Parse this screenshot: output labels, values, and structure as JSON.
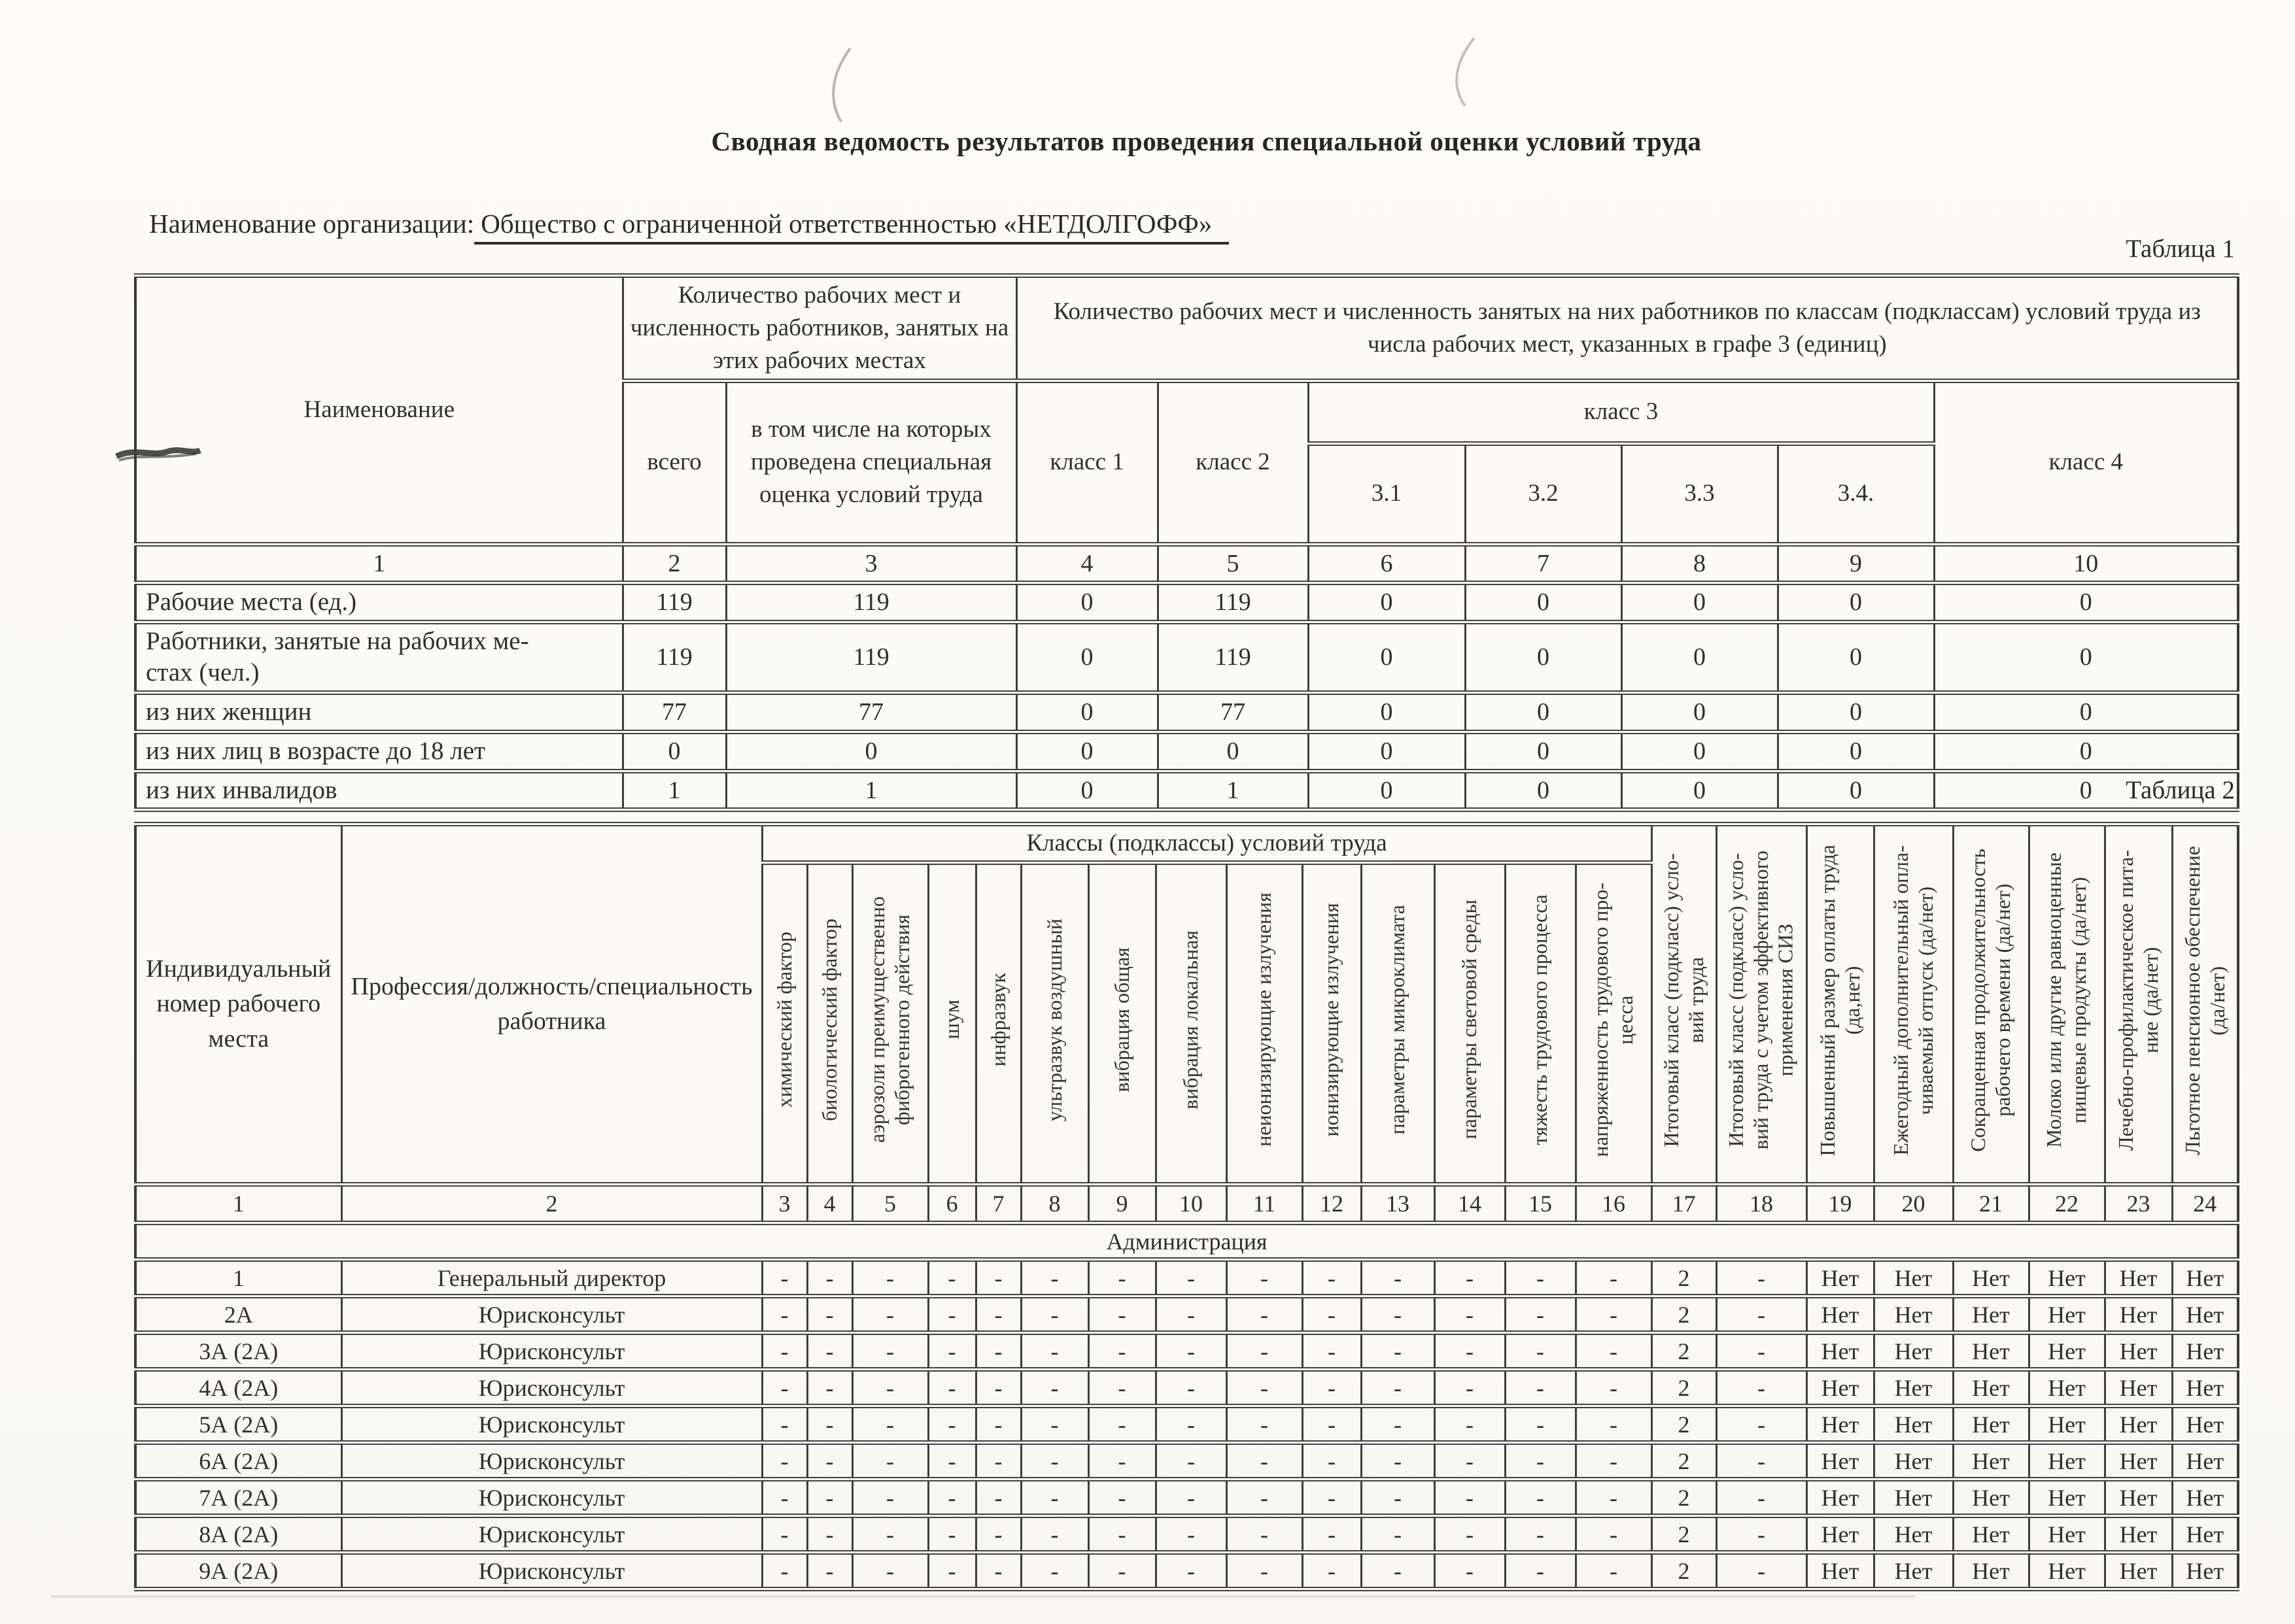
{
  "page": {
    "title": "Сводная ведомость результатов проведения специальной оценки условий труда",
    "org_label": "Наименование организации:",
    "org_value": "Общество с ограниченной ответственностью «НЕТДОЛГОФФ»"
  },
  "table1": {
    "caption": "Таблица 1",
    "header": {
      "name": "Наименование",
      "group_counts": "Количество рабочих мест и численность работников, занятых на этих рабочих местах",
      "group_classes": "Количество рабочих мест и численность занятых на них работников по классам (подклассам) условий труда из числа рабочих мест, указанных в графе 3 (единиц)",
      "total": "всего",
      "incl": "в том числе на которых проведена специальная оценка условий труда",
      "class1": "класс 1",
      "class2": "класс 2",
      "class3": "класс 3",
      "class3_subs": [
        "3.1",
        "3.2",
        "3.3",
        "3.4."
      ],
      "class4": "класс 4"
    },
    "numbering": [
      "1",
      "2",
      "3",
      "4",
      "5",
      "6",
      "7",
      "8",
      "9",
      "10"
    ],
    "rows": [
      {
        "label": "Рабочие места (ед.)",
        "values": [
          "119",
          "119",
          "0",
          "119",
          "0",
          "0",
          "0",
          "0",
          "0"
        ]
      },
      {
        "label": "Работники, занятые на рабочих ме-\nстах (чел.)",
        "values": [
          "119",
          "119",
          "0",
          "119",
          "0",
          "0",
          "0",
          "0",
          "0"
        ]
      },
      {
        "label": "из них женщин",
        "values": [
          "77",
          "77",
          "0",
          "77",
          "0",
          "0",
          "0",
          "0",
          "0"
        ]
      },
      {
        "label": "из них лиц в возрасте до 18 лет",
        "values": [
          "0",
          "0",
          "0",
          "0",
          "0",
          "0",
          "0",
          "0",
          "0"
        ]
      },
      {
        "label": "из них инвалидов",
        "values": [
          "1",
          "1",
          "0",
          "1",
          "0",
          "0",
          "0",
          "0",
          "0"
        ]
      }
    ]
  },
  "table2": {
    "caption": "Таблица 2",
    "col1": "Индивидуальный номер рабочего места",
    "col2": "Профессия/должность/специальность работника",
    "group": "Классы (подклассы) условий труда",
    "factor_cols": [
      "химический фактор",
      "биологический фактор",
      "аэрозоли преимущественно\nфиброгенного действия",
      "шум",
      "инфразвук",
      "ультразвук воздушный",
      "вибрация общая",
      "вибрация локальная",
      "неионизирующие излучения",
      "ионизирующие излучения",
      "параметры микроклимата",
      "параметры световой среды",
      "тяжесть трудового процесса",
      "напряженность трудового про-\nцесса"
    ],
    "result_cols": [
      "Итоговый класс (подкласс) усло-\nвий труда",
      "Итоговый класс (подкласс) усло-\nвий труда с учетом эффективного\nприменения СИЗ",
      "Повышенный размер оплаты труда\n(да,нет)",
      "Ежегодный дополнительный опла-\nчиваемый отпуск (да/нет)",
      "Сокращенная продолжительность\nрабочего времени (да/нет)",
      "Молоко или другие равноценные\nпищевые продукты (да/нет)",
      "Лечебно-профилактическое пита-\nние (да/нет)",
      "Льготное пенсионное обеспечение\n(да/нет)"
    ],
    "numbering": [
      "1",
      "2",
      "3",
      "4",
      "5",
      "6",
      "7",
      "8",
      "9",
      "10",
      "11",
      "12",
      "13",
      "14",
      "15",
      "16",
      "17",
      "18",
      "19",
      "20",
      "21",
      "22",
      "23",
      "24"
    ],
    "section": "Администрация",
    "rows": [
      {
        "num": "1",
        "prof": "Генеральный директор",
        "values": [
          "-",
          "-",
          "-",
          "-",
          "-",
          "-",
          "-",
          "-",
          "-",
          "-",
          "-",
          "-",
          "-",
          "-",
          "2",
          "-",
          "Нет",
          "Нет",
          "Нет",
          "Нет",
          "Нет",
          "Нет"
        ]
      },
      {
        "num": "2А",
        "prof": "Юрисконсульт",
        "values": [
          "-",
          "-",
          "-",
          "-",
          "-",
          "-",
          "-",
          "-",
          "-",
          "-",
          "-",
          "-",
          "-",
          "-",
          "2",
          "-",
          "Нет",
          "Нет",
          "Нет",
          "Нет",
          "Нет",
          "Нет"
        ]
      },
      {
        "num": "3А (2А)",
        "prof": "Юрисконсульт",
        "values": [
          "-",
          "-",
          "-",
          "-",
          "-",
          "-",
          "-",
          "-",
          "-",
          "-",
          "-",
          "-",
          "-",
          "-",
          "2",
          "-",
          "Нет",
          "Нет",
          "Нет",
          "Нет",
          "Нет",
          "Нет"
        ]
      },
      {
        "num": "4А (2А)",
        "prof": "Юрисконсульт",
        "values": [
          "-",
          "-",
          "-",
          "-",
          "-",
          "-",
          "-",
          "-",
          "-",
          "-",
          "-",
          "-",
          "-",
          "-",
          "2",
          "-",
          "Нет",
          "Нет",
          "Нет",
          "Нет",
          "Нет",
          "Нет"
        ]
      },
      {
        "num": "5А (2А)",
        "prof": "Юрисконсульт",
        "values": [
          "-",
          "-",
          "-",
          "-",
          "-",
          "-",
          "-",
          "-",
          "-",
          "-",
          "-",
          "-",
          "-",
          "-",
          "2",
          "-",
          "Нет",
          "Нет",
          "Нет",
          "Нет",
          "Нет",
          "Нет"
        ]
      },
      {
        "num": "6А (2А)",
        "prof": "Юрисконсульт",
        "values": [
          "-",
          "-",
          "-",
          "-",
          "-",
          "-",
          "-",
          "-",
          "-",
          "-",
          "-",
          "-",
          "-",
          "-",
          "2",
          "-",
          "Нет",
          "Нет",
          "Нет",
          "Нет",
          "Нет",
          "Нет"
        ]
      },
      {
        "num": "7А (2А)",
        "prof": "Юрисконсульт",
        "values": [
          "-",
          "-",
          "-",
          "-",
          "-",
          "-",
          "-",
          "-",
          "-",
          "-",
          "-",
          "-",
          "-",
          "-",
          "2",
          "-",
          "Нет",
          "Нет",
          "Нет",
          "Нет",
          "Нет",
          "Нет"
        ]
      },
      {
        "num": "8А (2А)",
        "prof": "Юрисконсульт",
        "values": [
          "-",
          "-",
          "-",
          "-",
          "-",
          "-",
          "-",
          "-",
          "-",
          "-",
          "-",
          "-",
          "-",
          "-",
          "2",
          "-",
          "Нет",
          "Нет",
          "Нет",
          "Нет",
          "Нет",
          "Нет"
        ]
      },
      {
        "num": "9А (2А)",
        "prof": "Юрисконсульт",
        "values": [
          "-",
          "-",
          "-",
          "-",
          "-",
          "-",
          "-",
          "-",
          "-",
          "-",
          "-",
          "-",
          "-",
          "-",
          "2",
          "-",
          "Нет",
          "Нет",
          "Нет",
          "Нет",
          "Нет",
          "Нет"
        ]
      }
    ]
  }
}
